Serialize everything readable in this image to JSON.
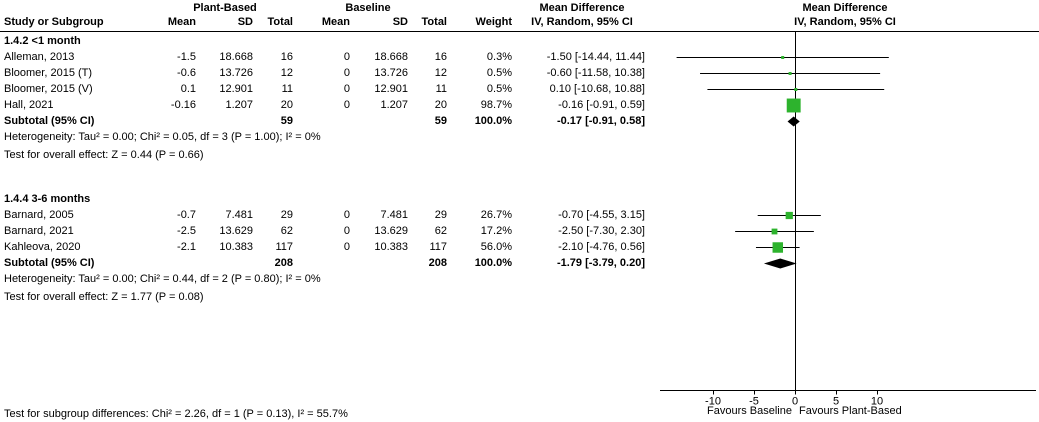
{
  "table": {
    "group_headers": [
      "Plant-Based",
      "Baseline",
      "Mean Difference",
      "Mean Difference"
    ],
    "col_headers": [
      "Study or Subgroup",
      "Mean",
      "SD",
      "Total",
      "Mean",
      "SD",
      "Total",
      "Weight",
      "IV, Random, 95% CI",
      "IV, Random, 95% CI"
    ]
  },
  "chart_data": {
    "type": "forest",
    "effect_measure": "Mean Difference",
    "method": "IV, Random, 95% CI",
    "colors": {
      "square": "#2db32d",
      "diamond": "#000000",
      "line": "#000000",
      "text": "#000000"
    },
    "axis": {
      "ticks": [
        -10,
        -5,
        0,
        5,
        10
      ],
      "xlim": [
        -16.5,
        13
      ],
      "favours_left": "Favours Baseline",
      "favours_right": "Favours Plant-Based"
    },
    "subgroups": [
      {
        "label": "1.4.2 <1 month",
        "studies": [
          {
            "name": "Alleman, 2013",
            "mean1": "-1.5",
            "sd1": "18.668",
            "total1": "16",
            "mean2": "0",
            "sd2": "18.668",
            "total2": "16",
            "weight": "0.3%",
            "weight_pct": 0.3,
            "ci_text": "-1.50 [-14.44, 11.44]",
            "md": -1.5,
            "lo": -14.44,
            "hi": 11.44
          },
          {
            "name": "Bloomer, 2015 (T)",
            "mean1": "-0.6",
            "sd1": "13.726",
            "total1": "12",
            "mean2": "0",
            "sd2": "13.726",
            "total2": "12",
            "weight": "0.5%",
            "weight_pct": 0.5,
            "ci_text": "-0.60 [-11.58, 10.38]",
            "md": -0.6,
            "lo": -11.58,
            "hi": 10.38
          },
          {
            "name": "Bloomer, 2015 (V)",
            "mean1": "0.1",
            "sd1": "12.901",
            "total1": "11",
            "mean2": "0",
            "sd2": "12.901",
            "total2": "11",
            "weight": "0.5%",
            "weight_pct": 0.5,
            "ci_text": "0.10 [-10.68, 10.88]",
            "md": 0.1,
            "lo": -10.68,
            "hi": 10.88
          },
          {
            "name": "Hall, 2021",
            "mean1": "-0.16",
            "sd1": "1.207",
            "total1": "20",
            "mean2": "0",
            "sd2": "1.207",
            "total2": "20",
            "weight": "98.7%",
            "weight_pct": 98.7,
            "ci_text": "-0.16 [-0.91, 0.59]",
            "md": -0.16,
            "lo": -0.91,
            "hi": 0.59
          }
        ],
        "subtotal": {
          "label": "Subtotal (95% CI)",
          "total1": "59",
          "total2": "59",
          "weight": "100.0%",
          "ci_text": "-0.17 [-0.91, 0.58]",
          "md": -0.17,
          "lo": -0.91,
          "hi": 0.58
        },
        "heterogeneity": "Heterogeneity: Tau² = 0.00; Chi² = 0.05, df = 3 (P = 1.00); I² = 0%",
        "overall_effect": "Test for overall effect: Z = 0.44 (P = 0.66)"
      },
      {
        "label": "1.4.4 3-6 months",
        "studies": [
          {
            "name": "Barnard, 2005",
            "mean1": "-0.7",
            "sd1": "7.481",
            "total1": "29",
            "mean2": "0",
            "sd2": "7.481",
            "total2": "29",
            "weight": "26.7%",
            "weight_pct": 26.7,
            "ci_text": "-0.70 [-4.55, 3.15]",
            "md": -0.7,
            "lo": -4.55,
            "hi": 3.15
          },
          {
            "name": "Barnard, 2021",
            "mean1": "-2.5",
            "sd1": "13.629",
            "total1": "62",
            "mean2": "0",
            "sd2": "13.629",
            "total2": "62",
            "weight": "17.2%",
            "weight_pct": 17.2,
            "ci_text": "-2.50 [-7.30, 2.30]",
            "md": -2.5,
            "lo": -7.3,
            "hi": 2.3
          },
          {
            "name": "Kahleova, 2020",
            "mean1": "-2.1",
            "sd1": "10.383",
            "total1": "117",
            "mean2": "0",
            "sd2": "10.383",
            "total2": "117",
            "weight": "56.0%",
            "weight_pct": 56.0,
            "ci_text": "-2.10 [-4.76, 0.56]",
            "md": -2.1,
            "lo": -4.76,
            "hi": 0.56
          }
        ],
        "subtotal": {
          "label": "Subtotal (95% CI)",
          "total1": "208",
          "total2": "208",
          "weight": "100.0%",
          "ci_text": "-1.79 [-3.79, 0.20]",
          "md": -1.79,
          "lo": -3.79,
          "hi": 0.2
        },
        "heterogeneity": "Heterogeneity: Tau² = 0.00; Chi² = 0.44, df = 2 (P = 0.80); I² = 0%",
        "overall_effect": "Test for overall effect: Z = 1.77 (P = 0.08)"
      }
    ],
    "footer": "Test for subgroup differences: Chi² = 2.26, df = 1 (P = 0.13), I² = 55.7%"
  }
}
